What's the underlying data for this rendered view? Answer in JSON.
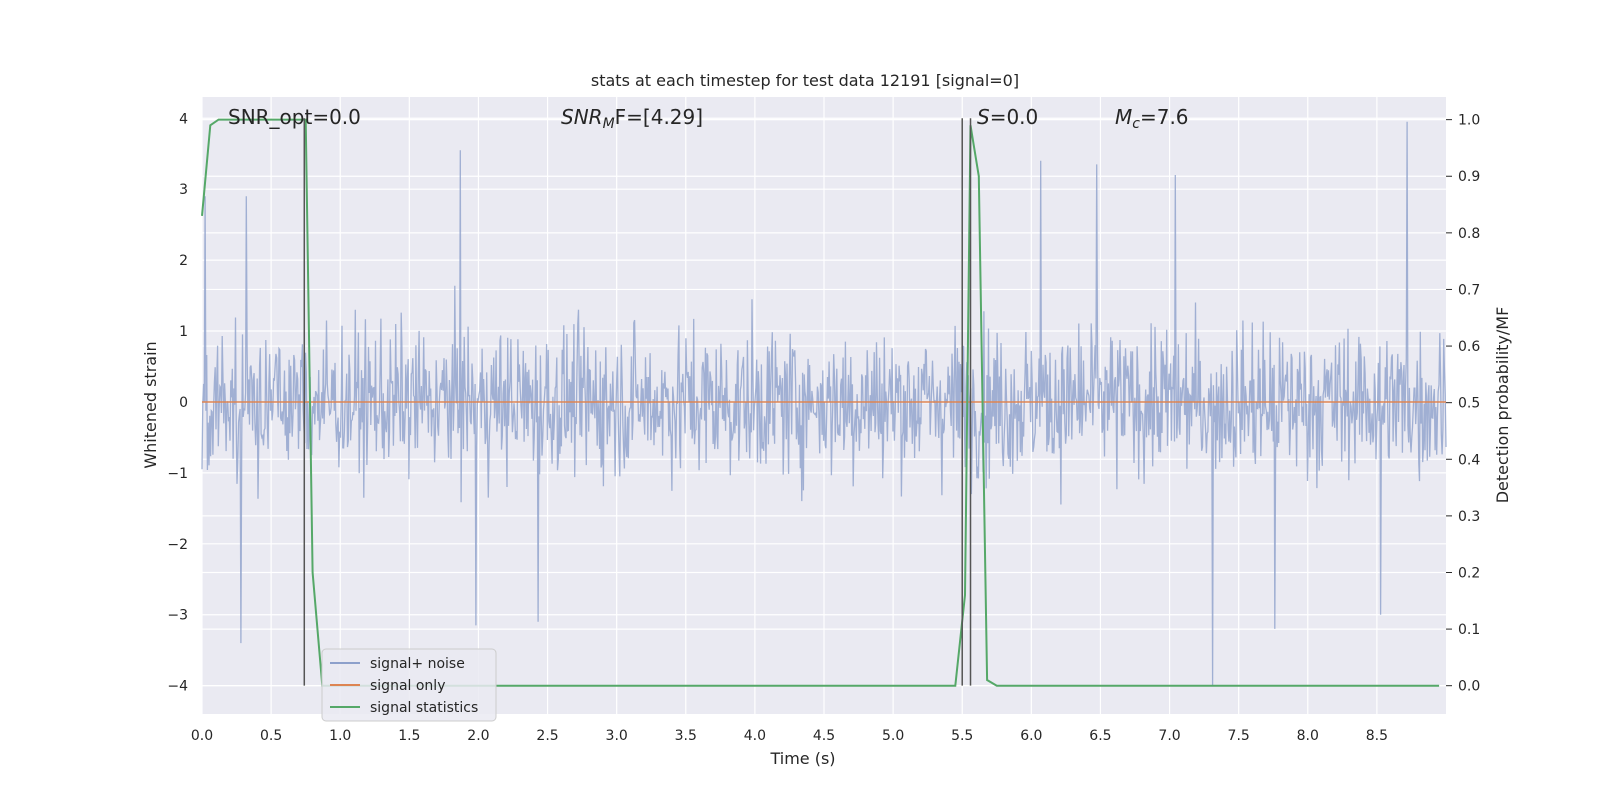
{
  "chart_data": {
    "type": "line",
    "title": "stats at each timestep for test data 12191 [signal=0]",
    "xlabel": "Time (s)",
    "ylabel_left": "Whitened strain",
    "ylabel_right": "Detection probability/MF",
    "xlim": [
      0.0,
      9.0
    ],
    "ylim_left": [
      -4.4,
      4.3
    ],
    "ylim_right": [
      -0.05,
      1.04
    ],
    "x_ticks": [
      "0.0",
      "0.5",
      "1.0",
      "1.5",
      "2.0",
      "2.5",
      "3.0",
      "3.5",
      "4.0",
      "4.5",
      "5.0",
      "5.5",
      "6.0",
      "6.5",
      "7.0",
      "7.5",
      "8.0",
      "8.5"
    ],
    "y_ticks_left": [
      "4",
      "3",
      "2",
      "1",
      "0",
      "−1",
      "−2",
      "−3",
      "−4"
    ],
    "y_ticks_left_values": [
      4,
      3,
      2,
      1,
      0,
      -1,
      -2,
      -3,
      -4
    ],
    "y_ticks_right": [
      "1.0",
      "0.9",
      "0.8",
      "0.7",
      "0.6",
      "0.5",
      "0.4",
      "0.3",
      "0.2",
      "0.1",
      "0.0"
    ],
    "y_ticks_right_values": [
      1.0,
      0.9,
      0.8,
      0.7,
      0.6,
      0.5,
      0.4,
      0.3,
      0.2,
      0.1,
      0.0
    ],
    "grid": true,
    "legend_position": "lower-left",
    "annotations": {
      "snr_opt": "SNR_opt=0.0",
      "snr_mf_sym": "SNR",
      "snr_mf_sub": "M",
      "snr_mf_rest": "F=[4.29]",
      "s_sym": "S",
      "s_rest": "=0.0",
      "mc_sym": "M",
      "mc_sub": "c",
      "mc_rest": "=7.6"
    },
    "series": [
      {
        "name": "signal+ noise",
        "color": "#8da0cb",
        "axis": "left",
        "style": "noise",
        "typical_range": [
          -1.9,
          2.3
        ],
        "peaks": [
          {
            "x": 0.28,
            "y": -3.4
          },
          {
            "x": 0.02,
            "y": 2.9
          },
          {
            "x": 0.32,
            "y": 2.9
          },
          {
            "x": 1.87,
            "y": 3.55
          },
          {
            "x": 1.98,
            "y": -3.15
          },
          {
            "x": 2.43,
            "y": -3.1
          },
          {
            "x": 8.72,
            "y": 3.95
          },
          {
            "x": 7.31,
            "y": -4.0
          },
          {
            "x": 7.04,
            "y": 3.2
          },
          {
            "x": 6.07,
            "y": 3.4
          },
          {
            "x": 6.47,
            "y": 3.35
          },
          {
            "x": 7.76,
            "y": -3.2
          },
          {
            "x": 8.53,
            "y": -3.0
          }
        ]
      },
      {
        "name": "signal only",
        "color": "#dd8452",
        "axis": "left",
        "x": [
          0.0,
          9.0
        ],
        "y": [
          0.0,
          0.0
        ]
      },
      {
        "name": "signal statistics",
        "color": "#55a868",
        "axis": "right",
        "x": [
          0.0,
          0.06,
          0.12,
          0.25,
          0.5,
          0.72,
          0.75,
          0.8,
          0.87,
          1.0,
          2.0,
          3.0,
          4.0,
          5.0,
          5.45,
          5.52,
          5.56,
          5.62,
          5.68,
          5.75,
          6.0,
          7.0,
          8.0,
          8.95
        ],
        "y": [
          0.83,
          0.99,
          1.0,
          1.0,
          1.0,
          1.0,
          1.0,
          0.2,
          0.0,
          0.0,
          0.0,
          0.0,
          0.0,
          0.0,
          0.0,
          0.16,
          0.99,
          0.9,
          0.01,
          0.0,
          0.0,
          0.0,
          0.0,
          0.0
        ]
      }
    ],
    "vertical_lines": [
      {
        "x": 0.74,
        "color": "#555555",
        "from": -4.0,
        "to": 4.0
      },
      {
        "x": 5.5,
        "color": "#555555",
        "from": -4.0,
        "to": 4.0
      },
      {
        "x": 5.56,
        "color": "#555555",
        "from": -4.0,
        "to": 4.0
      }
    ]
  }
}
